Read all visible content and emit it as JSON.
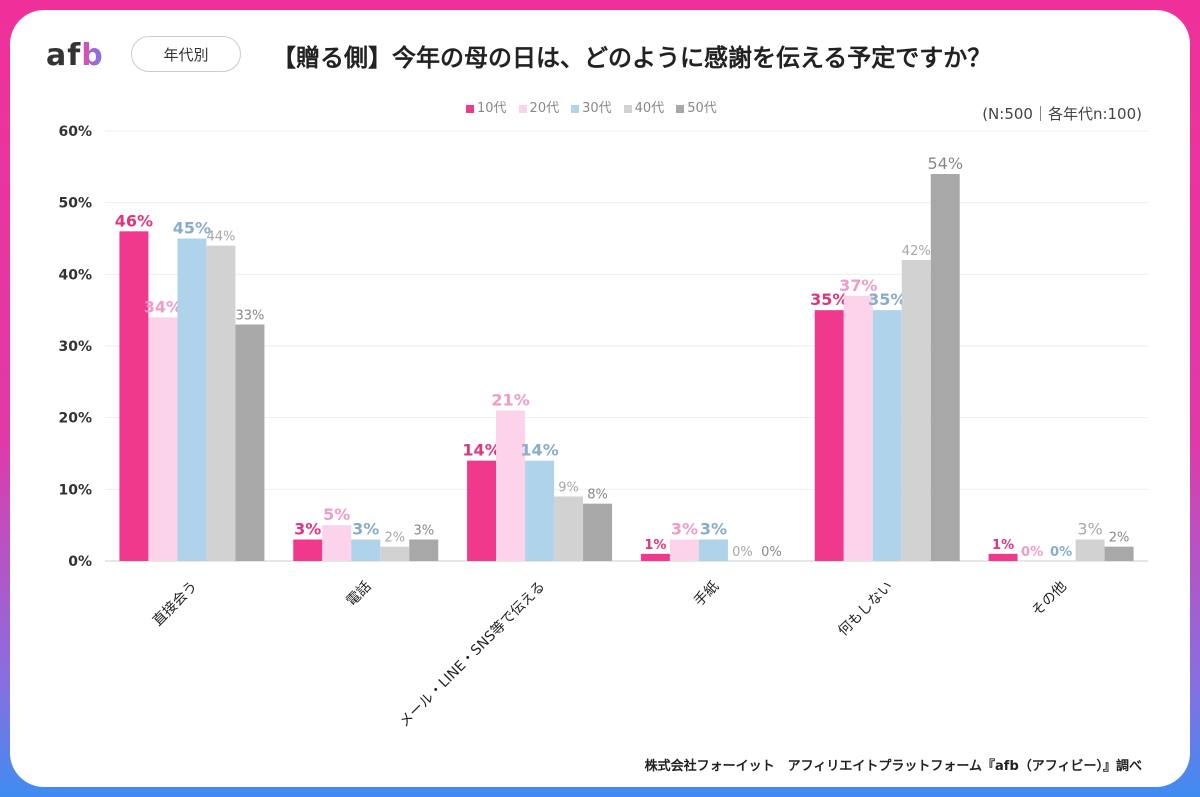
{
  "header": {
    "logo": "afb",
    "filter_pill": "年代別",
    "title": "【贈る側】今年の母の日は、どのように感謝を伝える予定ですか？",
    "sample_note": "(N:500｜各年代n:100)"
  },
  "footer": "株式会社フォーイット　アフィリエイトプラットフォーム『afb（アフィビー）』調べ",
  "chart_data": {
    "type": "bar",
    "title": "【贈る側】今年の母の日は、どのように感謝を伝える予定ですか？",
    "categories": [
      "直接会う",
      "電話",
      "メール・LINE・SNS等で伝える",
      "手紙",
      "何もしない",
      "その他"
    ],
    "series": [
      {
        "name": "10代",
        "color": "#f0388c",
        "label_color": "#e0357f",
        "values": [
          46,
          3,
          14,
          1,
          35,
          1
        ]
      },
      {
        "name": "20代",
        "color": "#fcd3ea",
        "label_color": "#f09cc8",
        "values": [
          34,
          5,
          21,
          3,
          37,
          0
        ]
      },
      {
        "name": "30代",
        "color": "#aed3ea",
        "label_color": "#86aec8",
        "values": [
          45,
          3,
          14,
          3,
          35,
          0
        ]
      },
      {
        "name": "40代",
        "color": "#d2d2d2",
        "label_color": "#a8a8a8",
        "values": [
          44,
          2,
          9,
          0,
          42,
          3
        ]
      },
      {
        "name": "50代",
        "color": "#a8a8a8",
        "label_color": "#888888",
        "values": [
          33,
          3,
          8,
          0,
          54,
          2
        ]
      }
    ],
    "ylim": [
      0,
      60
    ],
    "yticks": [
      "0%",
      "10%",
      "20%",
      "30%",
      "40%",
      "50%",
      "60%"
    ],
    "value_suffix": "%",
    "grid": true,
    "legend": "top-center"
  }
}
